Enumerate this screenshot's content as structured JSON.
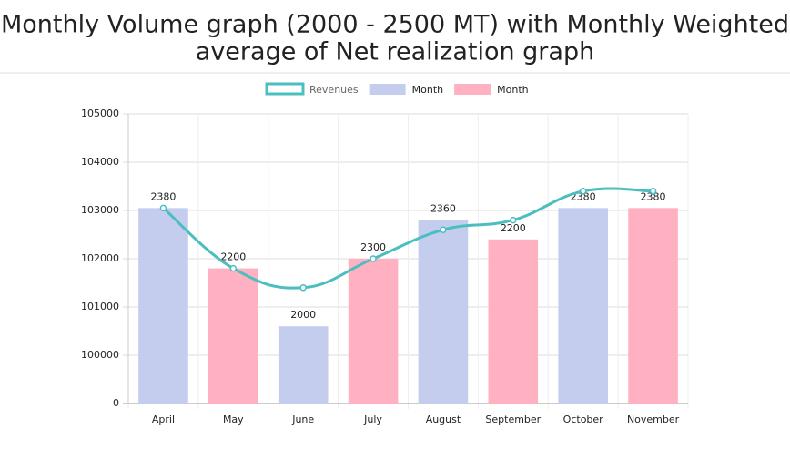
{
  "chart_data": {
    "type": "bar-line",
    "title": "Monthly Volume graph (2000 - 2500 MT) with Monthly Weighted",
    "subtitle": "average of Net realization graph",
    "categories": [
      "April",
      "May",
      "June",
      "July",
      "August",
      "September",
      "October",
      "November"
    ],
    "series": [
      {
        "name": "Revenues",
        "type": "line",
        "color": "#4bbfbf",
        "values": [
          103050,
          101800,
          101400,
          102000,
          102600,
          102800,
          103400,
          103400
        ]
      },
      {
        "name": "Month",
        "type": "bar",
        "color": "#c5cdee",
        "values": [
          103050,
          null,
          100600,
          null,
          102800,
          null,
          103050,
          null
        ],
        "bar_labels": [
          "2380",
          null,
          "2000",
          null,
          "2360",
          null,
          "2380",
          null
        ]
      },
      {
        "name": "Month",
        "type": "bar",
        "color": "#ffb1c1",
        "values": [
          null,
          101800,
          null,
          102000,
          null,
          102400,
          null,
          103050
        ],
        "bar_labels": [
          null,
          "2200",
          null,
          "2300",
          null,
          "2200",
          null,
          "2380"
        ]
      }
    ],
    "ylim": [
      99000,
      105000
    ],
    "yticks": [
      {
        "value": 99000,
        "label": "0"
      },
      100000,
      101000,
      102000,
      103000,
      104000,
      105000
    ],
    "grid": true
  }
}
